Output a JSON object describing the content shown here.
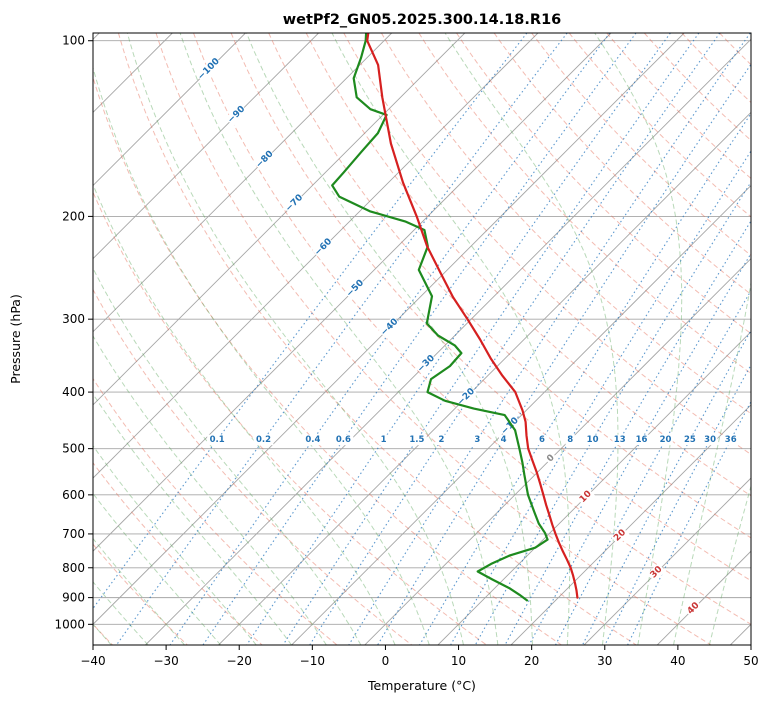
{
  "title": "wetPf2_GN05.2025.300.14.18.R16",
  "axes": {
    "x_label": "Temperature (°C)",
    "y_label": "Pressure (hPa)",
    "x_ticks": [
      "−40",
      "−30",
      "−20",
      "−10",
      "0",
      "10",
      "20",
      "30",
      "40",
      "50"
    ],
    "y_ticks": [
      100,
      200,
      300,
      400,
      500,
      600,
      700,
      800,
      900,
      1000
    ]
  },
  "chart_data": {
    "type": "line",
    "diagram": "skew-t-log-p sounding",
    "title": "wetPf2_GN05.2025.300.14.18.R16",
    "xlabel": "Temperature (°C)",
    "ylabel": "Pressure (hPa)",
    "temperature_range": [
      -40,
      50
    ],
    "pressure_range": [
      100,
      1050
    ],
    "skew_deg_per_decade": 79.8,
    "isotherms": {
      "min": -120,
      "max": 50,
      "step": 10
    },
    "dry_adiabats": {
      "min": -40,
      "max": 200,
      "step": 10
    },
    "moist_adiabats": {
      "min": -40,
      "max": 45,
      "step": 5
    },
    "mixing_ratio": {
      "values": [
        0.1,
        0.2,
        0.4,
        0.6,
        1,
        1.5,
        2,
        3,
        4,
        6,
        8,
        10,
        13,
        16,
        20,
        25,
        30,
        36
      ],
      "labels": [
        "0.1",
        "0.2",
        "0.4",
        "0.6",
        "1",
        "1.5",
        "2",
        "3",
        "4",
        "6",
        "8",
        "10",
        "13",
        "16",
        "20",
        "25",
        "30",
        "36"
      ],
      "label_pressure": 483
    },
    "isotherm_labels": [
      {
        "label": "−100",
        "t": -100,
        "p": 112
      },
      {
        "label": "−90",
        "t": -90,
        "p": 134
      },
      {
        "label": "−80",
        "t": -80,
        "p": 160
      },
      {
        "label": "−70",
        "t": -70,
        "p": 190
      },
      {
        "label": "−60",
        "t": -60,
        "p": 226
      },
      {
        "label": "−50",
        "t": -50,
        "p": 266
      },
      {
        "label": "−40",
        "t": -40,
        "p": 310
      },
      {
        "label": "−30",
        "t": -30,
        "p": 358
      },
      {
        "label": "−20",
        "t": -20,
        "p": 408
      },
      {
        "label": "−10",
        "t": -10,
        "p": 458
      },
      {
        "label": "0",
        "t": 0,
        "p": 520
      },
      {
        "label": "10",
        "t": 10,
        "p": 605
      },
      {
        "label": "20",
        "t": 20,
        "p": 705
      },
      {
        "label": "30",
        "t": 30,
        "p": 815
      },
      {
        "label": "40",
        "t": 40,
        "p": 940
      }
    ],
    "temperature_profile": [
      [
        97,
        -83.2
      ],
      [
        100,
        -82.3
      ],
      [
        110,
        -77.5
      ],
      [
        125,
        -72.5
      ],
      [
        150,
        -65.0
      ],
      [
        175,
        -58.0
      ],
      [
        200,
        -51.5
      ],
      [
        225,
        -46.0
      ],
      [
        250,
        -40.5
      ],
      [
        275,
        -35.5
      ],
      [
        300,
        -30.5
      ],
      [
        325,
        -26.0
      ],
      [
        350,
        -22.0
      ],
      [
        375,
        -18.0
      ],
      [
        400,
        -14.0
      ],
      [
        430,
        -10.5
      ],
      [
        450,
        -8.5
      ],
      [
        475,
        -6.5
      ],
      [
        500,
        -4.5
      ],
      [
        525,
        -2.2
      ],
      [
        550,
        0.0
      ],
      [
        575,
        2.0
      ],
      [
        600,
        3.9
      ],
      [
        625,
        5.7
      ],
      [
        650,
        7.5
      ],
      [
        675,
        9.2
      ],
      [
        700,
        10.9
      ],
      [
        725,
        12.6
      ],
      [
        750,
        14.3
      ],
      [
        775,
        16.0
      ],
      [
        800,
        17.6
      ],
      [
        825,
        19.0
      ],
      [
        850,
        20.3
      ],
      [
        875,
        21.5
      ],
      [
        900,
        22.6
      ]
    ],
    "dewpoint_profile": [
      [
        97,
        -83.5
      ],
      [
        100,
        -82.5
      ],
      [
        107,
        -80.8
      ],
      [
        116,
        -79.0
      ],
      [
        125,
        -76.0
      ],
      [
        131,
        -72.5
      ],
      [
        134,
        -69.5
      ],
      [
        144,
        -68.2
      ],
      [
        155,
        -67.9
      ],
      [
        168,
        -67.5
      ],
      [
        177,
        -67.3
      ],
      [
        185,
        -64.8
      ],
      [
        196,
        -58.6
      ],
      [
        204,
        -52.4
      ],
      [
        211,
        -48.6
      ],
      [
        225,
        -45.9
      ],
      [
        247,
        -43.9
      ],
      [
        274,
        -38.5
      ],
      [
        305,
        -35.5
      ],
      [
        320,
        -32.3
      ],
      [
        333,
        -28.6
      ],
      [
        343,
        -26.7
      ],
      [
        361,
        -26.5
      ],
      [
        380,
        -27.3
      ],
      [
        400,
        -26.0
      ],
      [
        414,
        -22.4
      ],
      [
        427,
        -17.4
      ],
      [
        438,
        -12.3
      ],
      [
        465,
        -8.8
      ],
      [
        500,
        -5.7
      ],
      [
        528,
        -3.4
      ],
      [
        555,
        -1.4
      ],
      [
        600,
        1.8
      ],
      [
        642,
        5.0
      ],
      [
        672,
        7.2
      ],
      [
        697,
        9.3
      ],
      [
        716,
        10.6
      ],
      [
        739,
        10.0
      ],
      [
        762,
        7.6
      ],
      [
        788,
        6.2
      ],
      [
        812,
        5.4
      ],
      [
        838,
        8.5
      ],
      [
        868,
        12.1
      ],
      [
        890,
        14.3
      ],
      [
        910,
        16.1
      ]
    ],
    "colors": {
      "grid": "#a6a6a6",
      "dry_adiabat": "rgba(228,106,84,0.45)",
      "moist_adiabat": "rgba(88,165,88,0.42)",
      "mixing_ratio": "rgba(38,118,190,0.75)",
      "temperature": "#d62020",
      "dewpoint": "#1e8a1e",
      "cold_label": "#2272b4",
      "warm_label": "#c93636",
      "zero_label": "#8a8a8a",
      "mixing_label": "#2272b4"
    }
  }
}
